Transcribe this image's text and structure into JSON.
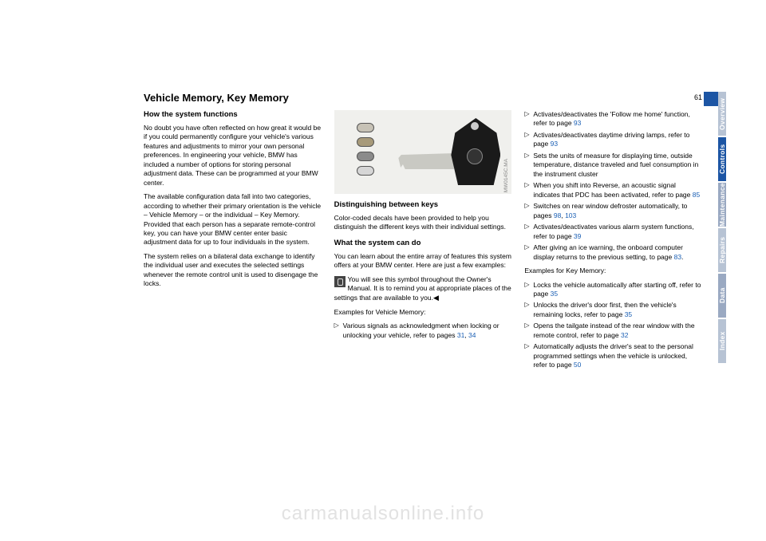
{
  "page_number": "61",
  "title": "Vehicle Memory, Key Memory",
  "tabs": [
    {
      "label": "Overview",
      "bg": "#b7c3d4"
    },
    {
      "label": "Controls",
      "bg": "#1c55a4"
    },
    {
      "label": "Maintenance",
      "bg": "#9aa9c2"
    },
    {
      "label": "Repairs",
      "bg": "#b7c3d4"
    },
    {
      "label": "Data",
      "bg": "#9aa9c2"
    },
    {
      "label": "Index",
      "bg": "#b7c3d4"
    }
  ],
  "decal_colors": [
    "#c7c2b6",
    "#a79a7a",
    "#8b8b8b",
    "#d6d6d6"
  ],
  "col1": {
    "h1": "How the system functions",
    "p1": "No doubt you have often reflected on how great it would be if you could permanently configure your vehicle's various features and adjustments to mirror your own personal preferences. In engineering your vehicle, BMW has included a number of options for storing personal adjustment data. These can be programmed at your BMW center.",
    "p2": "The available configuration data fall into two categories, according to whether their primary orientation is the vehicle – Vehicle Memory – or the individual – Key Memory. Provided that each person has a separate remote-control key, you can have your BMW center enter basic adjustment data for up to four individuals in the system.",
    "p3": "The system relies on a bilateral data exchange to identify the individual user and executes the selected settings whenever the remote control unit is used to disengage the locks."
  },
  "col2": {
    "figcaption": "MW0145C.MA",
    "h1": "Distinguishing between keys",
    "p1": "Color-coded decals have been provided to help you distinguish the different keys with their individual settings.",
    "h2": "What the system can do",
    "p2": "You can learn about the entire array of features this system offers at your BMW center. Here are just a few examples:",
    "note": "You will see this symbol throughout the Owner's Manual. It is to remind you at appropriate places of the settings that are available to you.",
    "ex_label": "Examples for Vehicle Memory:",
    "b1a": "Various signals as acknowledgment when locking or unlocking your vehicle, refer to pages ",
    "b1_l1": "31",
    "b1_sep": ", ",
    "b1_l2": "34"
  },
  "col3": {
    "b1a": "Activates/deactivates the 'Follow me home' function, refer to page ",
    "b1_l": "93",
    "b2a": "Activates/deactivates daytime driving lamps, refer to page ",
    "b2_l": "93",
    "b3": "Sets the units of measure for displaying time, outside temperature, distance traveled and fuel consumption in the instrument cluster",
    "b4a": "When you shift into Reverse, an acoustic signal indicates that PDC has been activated, refer to page ",
    "b4_l": "85",
    "b5a": "Switches on rear window defroster automatically, to pages ",
    "b5_l1": "98",
    "b5_sep": ", ",
    "b5_l2": "103",
    "b6a": "Activates/deactivates various alarm system functions, refer to page ",
    "b6_l": "39",
    "b7a": "After giving an ice warning, the onboard computer display returns to the previous setting, to page ",
    "b7_l": "83",
    "b7_end": ".",
    "ex_label": "Examples for Key Memory:",
    "k1a": "Locks the vehicle automatically after starting off, refer to page ",
    "k1_l": "35",
    "k2a": "Unlocks the driver's door first, then the vehicle's remaining locks, refer to page ",
    "k2_l": "35",
    "k3a": "Opens the tailgate instead of the rear window with the remote control, refer to page ",
    "k3_l": "32",
    "k4a": "Automatically adjusts the driver's seat to the personal programmed settings when the vehicle is unlocked, refer to page ",
    "k4_l": "50"
  },
  "watermark": "carmanualsonline.info"
}
